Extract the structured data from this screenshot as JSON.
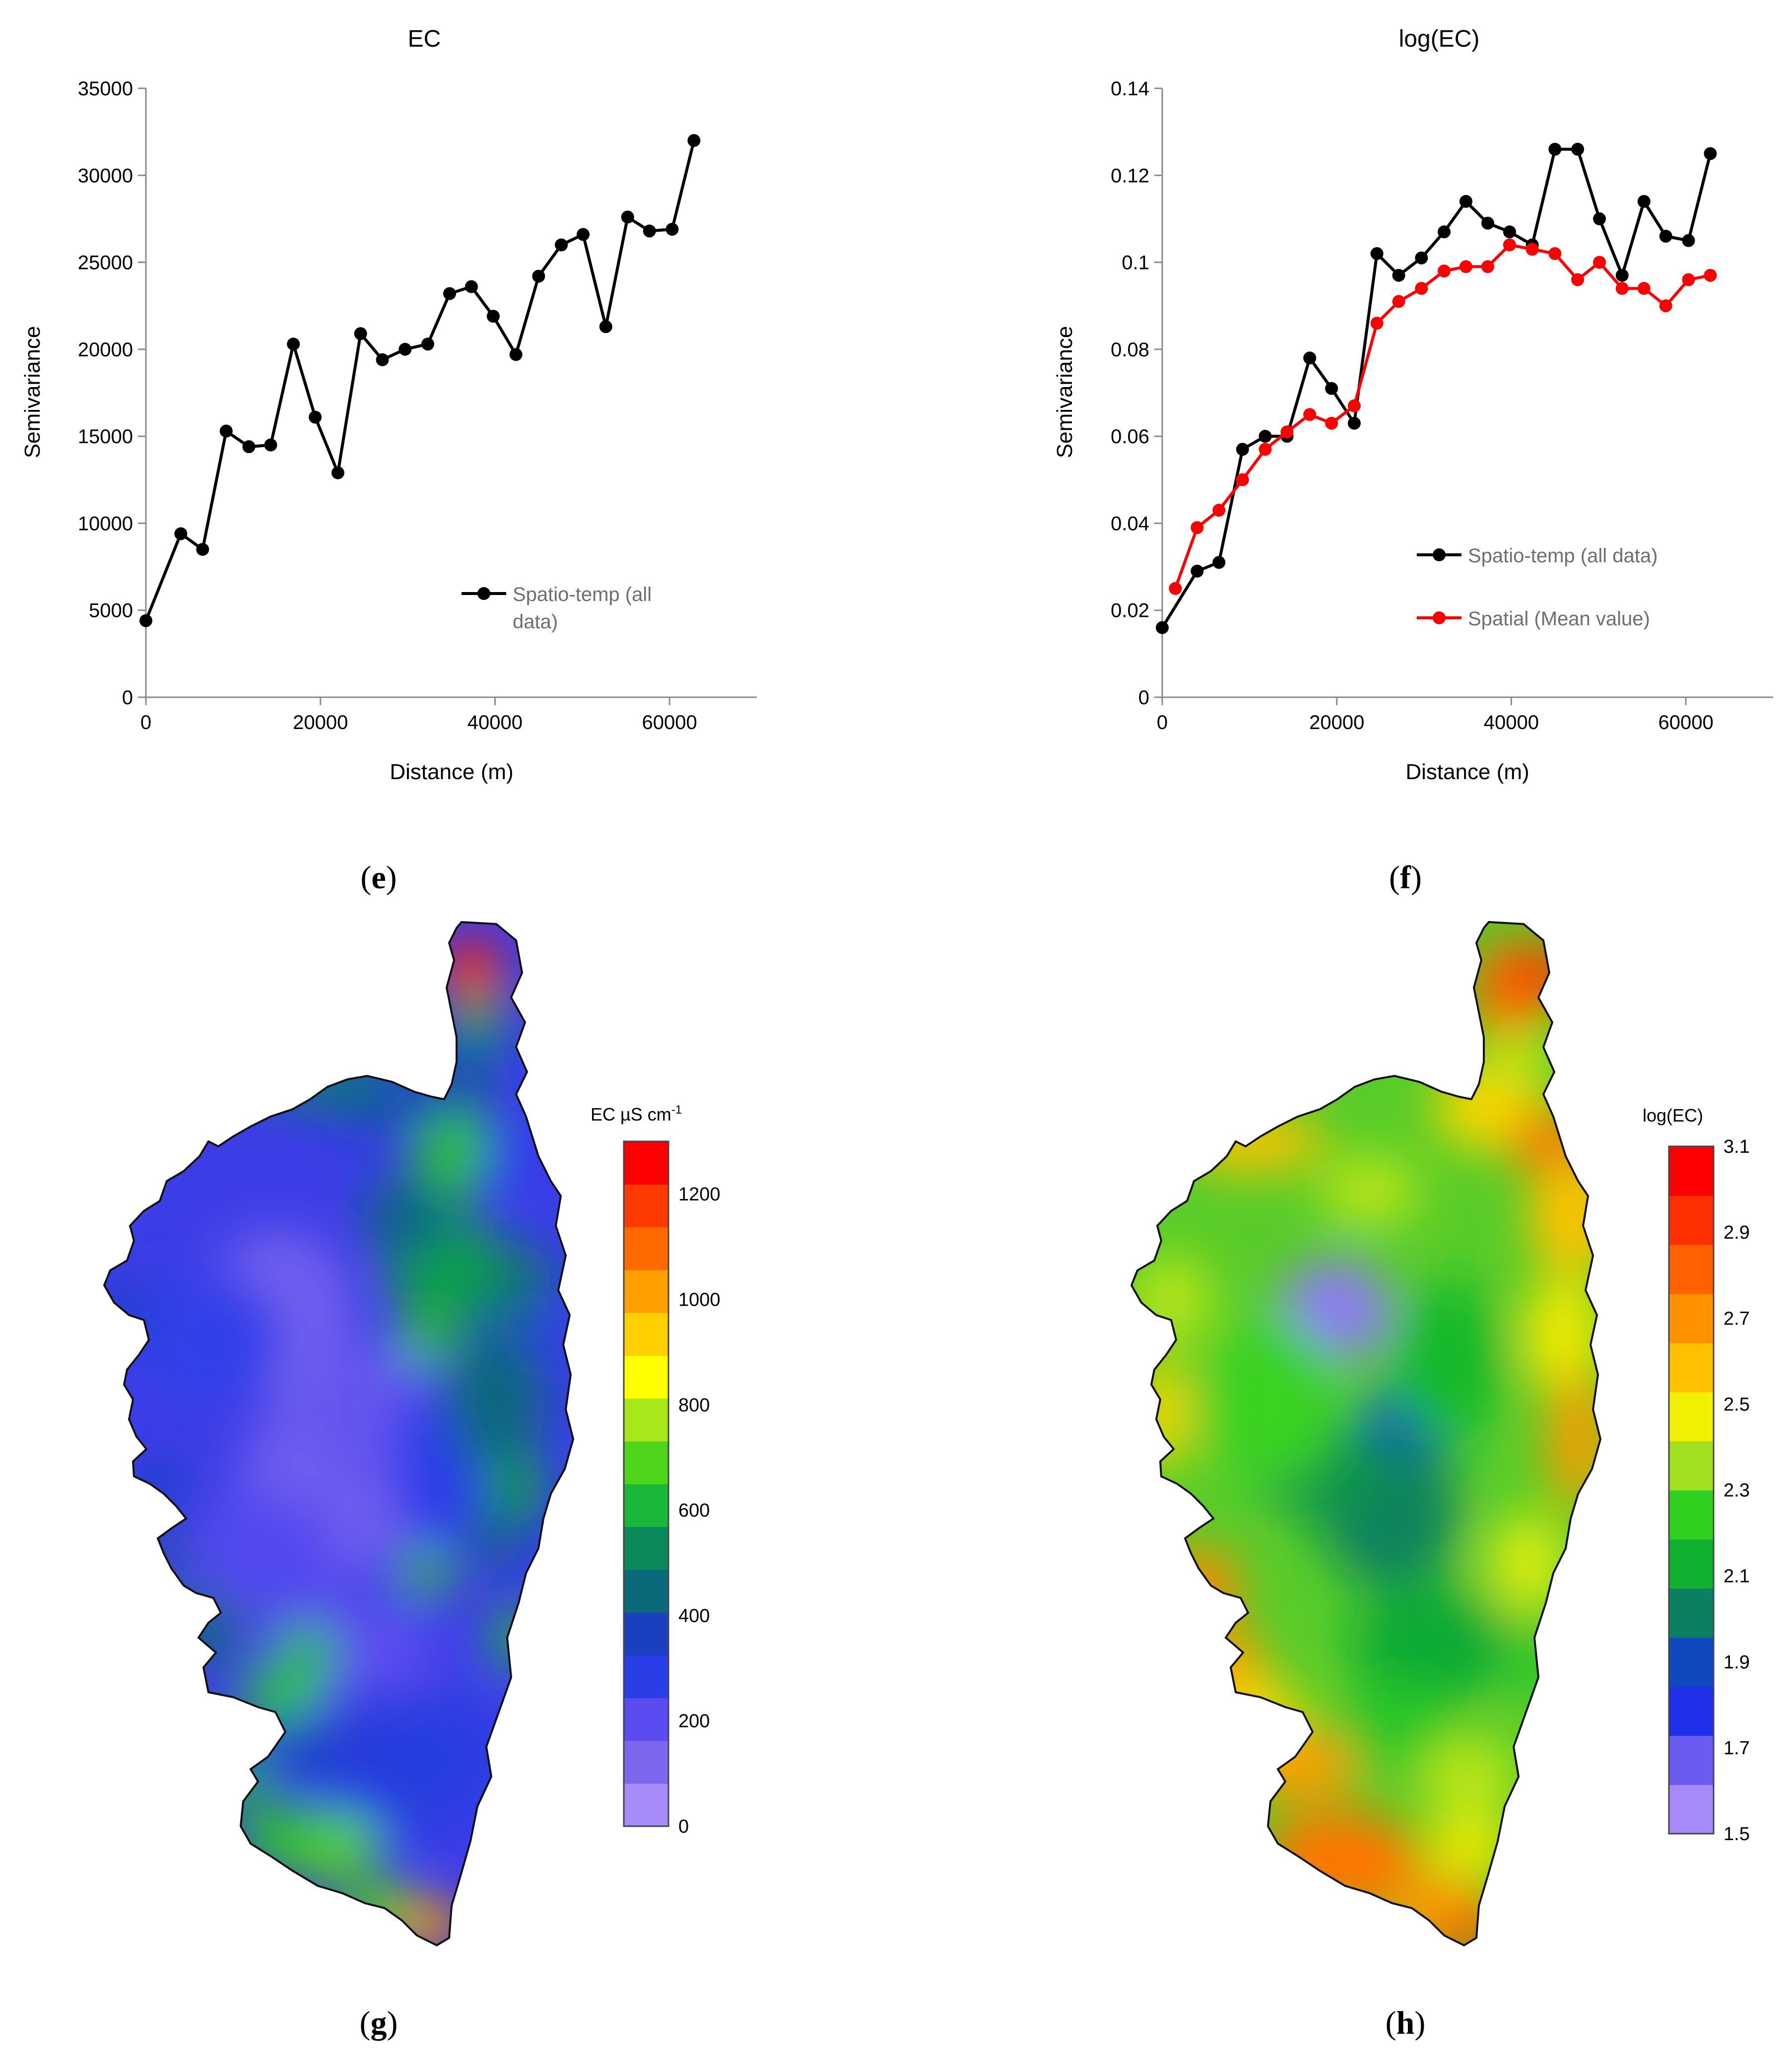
{
  "panels": {
    "e": {
      "open": "(",
      "letter": "e",
      "close": ")"
    },
    "f": {
      "open": "(",
      "letter": "f",
      "close": ")"
    },
    "g": {
      "open": "(",
      "letter": "g",
      "close": ")"
    },
    "h": {
      "open": "(",
      "letter": "h",
      "close": ")"
    }
  },
  "chart_data": [
    {
      "id": "semivariogram-ec",
      "type": "line",
      "title": "EC",
      "xlabel": "Distance (m)",
      "ylabel": "Semivariance",
      "xlim": [
        0,
        70000
      ],
      "ylim": [
        0,
        35000
      ],
      "xticks": [
        {
          "value": 0,
          "label": "0"
        },
        {
          "value": 20000,
          "label": "20000"
        },
        {
          "value": 40000,
          "label": "40000"
        },
        {
          "value": 60000,
          "label": "60000"
        }
      ],
      "yticks": [
        {
          "value": 0,
          "label": "0"
        },
        {
          "value": 5000,
          "label": "5000"
        },
        {
          "value": 10000,
          "label": "10000"
        },
        {
          "value": 15000,
          "label": "15000"
        },
        {
          "value": 20000,
          "label": "20000"
        },
        {
          "value": 25000,
          "label": "25000"
        },
        {
          "value": 30000,
          "label": "30000"
        },
        {
          "value": 35000,
          "label": "35000"
        }
      ],
      "legend_position": "bottom-right",
      "series": [
        {
          "name": "Spatio-temp (all data)",
          "legend_lines": [
            "Spatio-temp (all",
            "data)"
          ],
          "color": "#000000",
          "x": [
            0,
            4000,
            6500,
            9200,
            11800,
            14300,
            16900,
            19400,
            22000,
            24600,
            27100,
            29700,
            32300,
            34800,
            37300,
            39800,
            42400,
            45000,
            47600,
            50100,
            52700,
            55200,
            57700,
            60300,
            62800
          ],
          "y": [
            4400,
            9400,
            8500,
            15300,
            14400,
            14500,
            20300,
            16100,
            12900,
            20900,
            19400,
            20000,
            20300,
            23200,
            23600,
            21900,
            19700,
            24200,
            26000,
            26600,
            21300,
            27600,
            26800,
            26900,
            32000
          ]
        }
      ]
    },
    {
      "id": "semivariogram-logec",
      "type": "line",
      "title": "log(EC)",
      "xlabel": "Distance (m)",
      "ylabel": "Semivariance",
      "xlim": [
        0,
        70000
      ],
      "ylim": [
        0,
        0.14
      ],
      "xticks": [
        {
          "value": 0,
          "label": "0"
        },
        {
          "value": 20000,
          "label": "20000"
        },
        {
          "value": 40000,
          "label": "40000"
        },
        {
          "value": 60000,
          "label": "60000"
        }
      ],
      "yticks": [
        {
          "value": 0,
          "label": "0"
        },
        {
          "value": 0.02,
          "label": "0.02"
        },
        {
          "value": 0.04,
          "label": "0.04"
        },
        {
          "value": 0.06,
          "label": "0.06"
        },
        {
          "value": 0.08,
          "label": "0.08"
        },
        {
          "value": 0.1,
          "label": "0.1"
        },
        {
          "value": 0.12,
          "label": "0.12"
        },
        {
          "value": 0.14,
          "label": "0.14"
        }
      ],
      "legend_position": "bottom-right",
      "series": [
        {
          "name": "Spatio-temp (all data)",
          "legend_lines": [
            "Spatio-temp (all data)"
          ],
          "color": "#000000",
          "x": [
            0,
            4000,
            6500,
            9200,
            11800,
            14300,
            16900,
            19400,
            22000,
            24600,
            27100,
            29700,
            32300,
            34800,
            37300,
            39800,
            42400,
            45000,
            47600,
            50100,
            52700,
            55200,
            57700,
            60300,
            62800
          ],
          "y": [
            0.016,
            0.029,
            0.031,
            0.057,
            0.06,
            0.06,
            0.078,
            0.071,
            0.063,
            0.102,
            0.097,
            0.101,
            0.107,
            0.114,
            0.109,
            0.107,
            0.104,
            0.126,
            0.126,
            0.11,
            0.097,
            0.114,
            0.106,
            0.105,
            0.125
          ]
        },
        {
          "name": "Spatial (Mean value)",
          "legend_lines": [
            "Spatial (Mean value)"
          ],
          "color": "#ff0000",
          "x": [
            1500,
            4000,
            6500,
            9200,
            11800,
            14300,
            16900,
            19400,
            22000,
            24600,
            27100,
            29700,
            32300,
            34800,
            37300,
            39800,
            42400,
            45000,
            47600,
            50100,
            52700,
            55200,
            57700,
            60300,
            62800
          ],
          "y": [
            0.025,
            0.039,
            0.043,
            0.05,
            0.057,
            0.061,
            0.065,
            0.063,
            0.067,
            0.086,
            0.091,
            0.094,
            0.098,
            0.099,
            0.099,
            0.104,
            0.103,
            0.102,
            0.096,
            0.1,
            0.094,
            0.094,
            0.09,
            0.096,
            0.097
          ]
        }
      ]
    },
    {
      "id": "map-ec",
      "type": "heatmap",
      "legend_title_main": "EC µS cm",
      "legend_title_sup": "-1",
      "vmin": 0,
      "vmax": 1300,
      "ticks": [
        {
          "value": 0,
          "label": "0"
        },
        {
          "value": 200,
          "label": "200"
        },
        {
          "value": 400,
          "label": "400"
        },
        {
          "value": 600,
          "label": "600"
        },
        {
          "value": 800,
          "label": "800"
        },
        {
          "value": 1000,
          "label": "1000"
        },
        {
          "value": 1200,
          "label": "1200"
        }
      ],
      "colormap": [
        "#a78bfa",
        "#7b68ee",
        "#5a4cf0",
        "#2a3ee8",
        "#1a3fbf",
        "#0a6a7a",
        "#0a8a5a",
        "#1ab83a",
        "#4ed41a",
        "#a8e81a",
        "#ffff00",
        "#ffd000",
        "#ffa000",
        "#ff6a00",
        "#ff3a00",
        "#ff0000"
      ]
    },
    {
      "id": "map-logec",
      "type": "heatmap",
      "legend_title_main": "log(EC)",
      "vmin": 1.5,
      "vmax": 3.1,
      "ticks": [
        {
          "value": 1.5,
          "label": "1.5"
        },
        {
          "value": 1.7,
          "label": "1.7"
        },
        {
          "value": 1.9,
          "label": "1.9"
        },
        {
          "value": 2.1,
          "label": "2.1"
        },
        {
          "value": 2.3,
          "label": "2.3"
        },
        {
          "value": 2.5,
          "label": "2.5"
        },
        {
          "value": 2.7,
          "label": "2.7"
        },
        {
          "value": 2.9,
          "label": "2.9"
        },
        {
          "value": 3.1,
          "label": "3.1"
        }
      ],
      "colormap": [
        "#a78bfa",
        "#6a5cf0",
        "#2030e8",
        "#1048c0",
        "#0a8060",
        "#10b030",
        "#30d020",
        "#a0e020",
        "#f0f000",
        "#ffc000",
        "#ff9000",
        "#ff6000",
        "#ff3000",
        "#ff0000"
      ]
    }
  ]
}
